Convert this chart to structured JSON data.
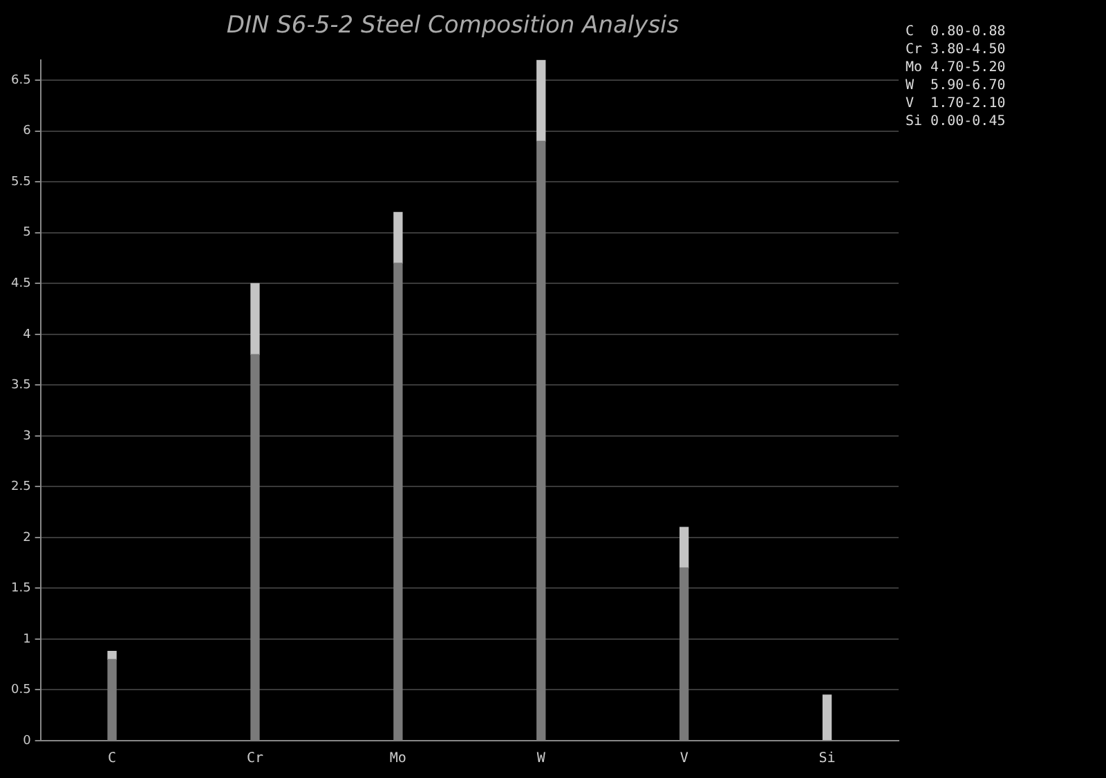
{
  "chart_data": {
    "type": "bar",
    "title": "DIN S6-5-2 Steel Composition Analysis",
    "stacked": true,
    "categories": [
      "C",
      "Cr",
      "Mo",
      "W",
      "V",
      "Si"
    ],
    "series": [
      {
        "color": "#7a7a7a",
        "values": [
          0.8,
          3.8,
          4.7,
          5.9,
          1.7,
          0.0
        ]
      },
      {
        "color": "#c4c4c4",
        "values": [
          0.08,
          0.7,
          0.5,
          0.8,
          0.4,
          0.45
        ]
      }
    ],
    "ylim": [
      0,
      6.7
    ],
    "yticks": [
      0,
      0.5,
      1,
      1.5,
      2,
      2.5,
      3,
      3.5,
      4,
      4.5,
      5,
      5.5,
      6,
      6.5
    ],
    "grid": "y",
    "annotations": [
      "C  0.80-0.88",
      "Cr 3.80-4.50",
      "Mo 4.70-5.20",
      "W  5.90-6.70",
      "V  1.70-2.10",
      "Si 0.00-0.45"
    ]
  }
}
